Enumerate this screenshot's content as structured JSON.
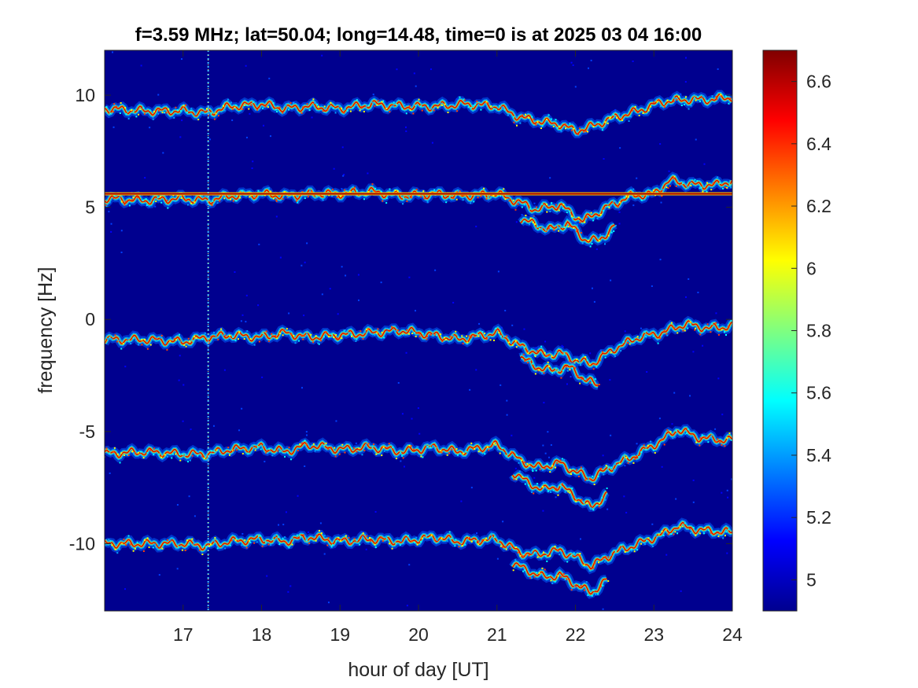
{
  "chart_data": {
    "type": "heatmap",
    "title": "f=3.59 MHz;  lat=50.04; long=14.48, time=0 is at 2025 03 04 16:00",
    "xlabel": "hour of day [UT]",
    "ylabel": "frequency [Hz]",
    "xlim": [
      16,
      24
    ],
    "ylim": [
      -13,
      12
    ],
    "x_ticks": [
      17,
      18,
      19,
      20,
      21,
      22,
      23,
      24
    ],
    "y_ticks": [
      10,
      5,
      0,
      -5,
      -10
    ],
    "x_tick_labels": [
      "17",
      "18",
      "19",
      "20",
      "21",
      "22",
      "23",
      "24"
    ],
    "y_tick_labels": [
      "10",
      "5",
      "0",
      "-5",
      "-10"
    ],
    "colorbar": {
      "colormap": "jet",
      "clim": [
        4.9,
        6.7
      ],
      "ticks": [
        5,
        5.2,
        5.4,
        5.6,
        5.8,
        6,
        6.2,
        6.4,
        6.6
      ],
      "tick_labels": [
        "5",
        "5.2",
        "5.4",
        "5.6",
        "5.8",
        "6",
        "6.2",
        "6.4",
        "6.6"
      ]
    },
    "background_color": "#00008f",
    "constant_line": {
      "y": 5.6,
      "x_range": [
        16,
        24
      ]
    },
    "vertical_line": {
      "x": 17.32
    },
    "traces": [
      {
        "name_hint": "band_10",
        "x": [
          16.0,
          16.5,
          17.0,
          17.3,
          17.6,
          18.0,
          18.3,
          18.6,
          19.0,
          19.4,
          19.8,
          20.2,
          20.6,
          21.0,
          21.3,
          21.6,
          21.8,
          22.0,
          22.2,
          22.5,
          22.8,
          23.1,
          23.4,
          23.7,
          24.0
        ],
        "y": [
          9.4,
          9.3,
          9.3,
          9.2,
          9.5,
          9.6,
          9.4,
          9.5,
          9.4,
          9.6,
          9.5,
          9.5,
          9.6,
          9.5,
          9.0,
          8.8,
          8.7,
          8.4,
          8.6,
          9.0,
          9.3,
          9.7,
          9.8,
          9.8,
          9.9
        ]
      },
      {
        "name_hint": "band_5",
        "x": [
          16.0,
          16.5,
          17.0,
          17.3,
          17.6,
          18.0,
          18.3,
          18.6,
          19.0,
          19.4,
          19.8,
          20.2,
          20.5,
          21.0,
          21.3,
          21.5,
          21.8,
          22.0,
          22.1,
          22.4,
          22.7,
          23.0,
          23.2,
          23.5,
          23.8,
          24.0
        ],
        "y": [
          5.4,
          5.3,
          5.4,
          5.3,
          5.5,
          5.6,
          5.5,
          5.6,
          5.6,
          5.7,
          5.5,
          5.6,
          5.5,
          5.6,
          5.2,
          4.9,
          5.1,
          4.6,
          4.4,
          5.0,
          5.5,
          5.6,
          6.2,
          6.0,
          6.0,
          6.2
        ]
      },
      {
        "name_hint": "band_0",
        "x": [
          16.0,
          16.5,
          17.0,
          17.3,
          17.6,
          18.0,
          18.3,
          18.6,
          19.0,
          19.4,
          19.8,
          20.2,
          20.5,
          21.0,
          21.3,
          21.6,
          21.8,
          22.0,
          22.2,
          22.5,
          22.8,
          23.1,
          23.4,
          23.7,
          24.0
        ],
        "y": [
          -0.9,
          -0.9,
          -1.0,
          -0.8,
          -0.7,
          -0.8,
          -0.6,
          -0.8,
          -0.7,
          -0.6,
          -0.5,
          -0.7,
          -0.9,
          -0.6,
          -1.2,
          -1.6,
          -1.5,
          -1.8,
          -2.0,
          -1.3,
          -0.8,
          -0.6,
          -0.2,
          -0.4,
          -0.3
        ]
      },
      {
        "name_hint": "band_-5",
        "x": [
          16.0,
          16.5,
          17.0,
          17.3,
          17.6,
          18.0,
          18.3,
          18.6,
          19.0,
          19.4,
          19.8,
          20.2,
          20.5,
          21.0,
          21.3,
          21.5,
          21.8,
          22.0,
          22.2,
          22.5,
          22.8,
          23.1,
          23.3,
          23.6,
          24.0
        ],
        "y": [
          -6.0,
          -5.9,
          -6.0,
          -6.0,
          -5.8,
          -5.7,
          -5.9,
          -5.6,
          -5.8,
          -5.7,
          -5.9,
          -5.7,
          -5.9,
          -5.6,
          -6.3,
          -6.6,
          -6.4,
          -6.8,
          -7.1,
          -6.5,
          -6.0,
          -5.4,
          -4.9,
          -5.3,
          -5.4
        ]
      },
      {
        "name_hint": "band_-10",
        "x": [
          16.0,
          16.5,
          17.0,
          17.3,
          17.6,
          18.0,
          18.3,
          18.6,
          19.0,
          19.4,
          19.8,
          20.2,
          20.5,
          21.0,
          21.3,
          21.5,
          21.8,
          22.0,
          22.2,
          22.5,
          22.8,
          23.1,
          23.3,
          23.6,
          24.0
        ],
        "y": [
          -10.0,
          -10.0,
          -10.0,
          -10.1,
          -9.9,
          -9.8,
          -9.9,
          -9.7,
          -9.9,
          -9.8,
          -9.9,
          -9.7,
          -9.9,
          -9.8,
          -10.4,
          -10.5,
          -10.3,
          -10.6,
          -11.0,
          -10.4,
          -10.0,
          -9.6,
          -9.2,
          -9.4,
          -9.5
        ]
      },
      {
        "name_hint": "band_5_lower",
        "x": [
          21.3,
          21.5,
          21.7,
          21.9,
          22.1,
          22.3,
          22.5
        ],
        "y": [
          4.5,
          4.2,
          4.0,
          4.3,
          3.6,
          3.5,
          4.2
        ]
      },
      {
        "name_hint": "band_0_lower",
        "x": [
          21.3,
          21.5,
          21.7,
          21.9,
          22.1,
          22.3
        ],
        "y": [
          -1.7,
          -2.1,
          -2.3,
          -2.1,
          -2.6,
          -3.0
        ]
      },
      {
        "name_hint": "band_-5_lower",
        "x": [
          21.2,
          21.4,
          21.6,
          21.8,
          22.0,
          22.2,
          22.4
        ],
        "y": [
          -6.8,
          -7.3,
          -7.6,
          -7.4,
          -7.9,
          -8.4,
          -7.8
        ]
      },
      {
        "name_hint": "band_-10_lower",
        "x": [
          21.2,
          21.4,
          21.6,
          21.8,
          22.0,
          22.2,
          22.4
        ],
        "y": [
          -10.9,
          -11.2,
          -11.5,
          -11.4,
          -11.8,
          -12.2,
          -11.6
        ]
      }
    ]
  }
}
